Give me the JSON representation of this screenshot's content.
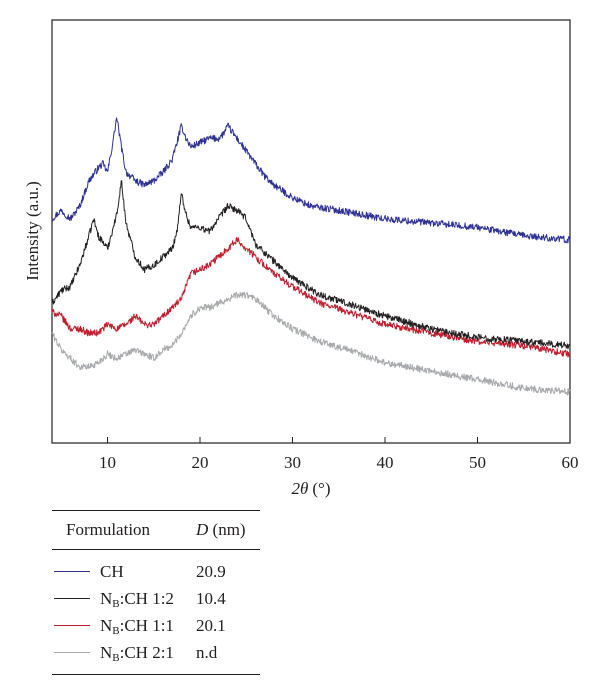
{
  "chart_data": {
    "type": "line",
    "title": "",
    "xlabel_symbol": "2θ",
    "xlabel_unit": "(°)",
    "ylabel": "Intensity (a.u.)",
    "xlim": [
      4,
      60
    ],
    "xticks": [
      10,
      20,
      30,
      40,
      50,
      60
    ],
    "yticks": [],
    "ylim": [
      0,
      100
    ],
    "grid": false,
    "legend_position": "below",
    "series": [
      {
        "name": "CH",
        "color": "#2e3192",
        "points": [
          [
            4,
            53
          ],
          [
            5,
            55
          ],
          [
            6,
            53
          ],
          [
            7,
            56
          ],
          [
            8,
            62
          ],
          [
            9,
            65
          ],
          [
            9.5,
            66
          ],
          [
            10,
            64
          ],
          [
            10.5,
            70
          ],
          [
            11,
            77
          ],
          [
            11.5,
            70
          ],
          [
            12,
            64
          ],
          [
            13,
            62
          ],
          [
            14,
            61
          ],
          [
            15,
            62
          ],
          [
            16,
            64
          ],
          [
            17,
            67
          ],
          [
            17.5,
            71
          ],
          [
            18,
            75
          ],
          [
            18.5,
            72
          ],
          [
            19,
            70
          ],
          [
            20,
            71
          ],
          [
            21,
            72
          ],
          [
            22,
            72
          ],
          [
            22.5,
            73
          ],
          [
            23,
            75
          ],
          [
            24,
            72
          ],
          [
            25,
            69
          ],
          [
            26,
            66
          ],
          [
            27,
            63
          ],
          [
            28,
            61
          ],
          [
            30,
            58
          ],
          [
            32,
            56
          ],
          [
            35,
            55
          ],
          [
            40,
            53
          ],
          [
            45,
            52
          ],
          [
            50,
            51
          ],
          [
            55,
            49
          ],
          [
            60,
            48
          ]
        ]
      },
      {
        "name": "N_B:CH 1:2",
        "color": "#231f20",
        "points": [
          [
            4,
            33
          ],
          [
            5,
            36
          ],
          [
            6,
            37
          ],
          [
            7,
            42
          ],
          [
            8,
            49
          ],
          [
            8.5,
            53
          ],
          [
            9,
            49
          ],
          [
            10,
            46
          ],
          [
            11,
            54
          ],
          [
            11.5,
            62
          ],
          [
            12,
            52
          ],
          [
            13,
            44
          ],
          [
            14,
            41
          ],
          [
            15,
            42
          ],
          [
            16,
            44
          ],
          [
            17,
            46
          ],
          [
            17.5,
            50
          ],
          [
            18,
            59
          ],
          [
            18.5,
            54
          ],
          [
            19,
            51
          ],
          [
            20,
            51
          ],
          [
            21,
            50
          ],
          [
            22,
            53
          ],
          [
            23,
            56
          ],
          [
            24,
            55
          ],
          [
            25,
            53
          ],
          [
            26,
            47
          ],
          [
            27,
            45
          ],
          [
            28,
            43
          ],
          [
            30,
            39
          ],
          [
            33,
            35
          ],
          [
            36,
            33
          ],
          [
            40,
            30
          ],
          [
            45,
            27
          ],
          [
            50,
            25
          ],
          [
            55,
            24
          ],
          [
            60,
            23
          ]
        ]
      },
      {
        "name": "N_B:CH 1:1",
        "color": "#be1e2d",
        "points": [
          [
            4,
            31
          ],
          [
            5,
            30
          ],
          [
            6,
            27
          ],
          [
            7,
            27
          ],
          [
            8,
            26
          ],
          [
            9,
            26
          ],
          [
            10,
            28
          ],
          [
            11,
            27
          ],
          [
            12,
            28
          ],
          [
            13,
            30
          ],
          [
            14,
            28
          ],
          [
            15,
            28
          ],
          [
            16,
            30
          ],
          [
            17,
            32
          ],
          [
            18,
            34
          ],
          [
            19,
            40
          ],
          [
            20,
            41
          ],
          [
            21,
            42
          ],
          [
            22,
            44
          ],
          [
            23,
            46
          ],
          [
            24,
            48
          ],
          [
            25,
            46
          ],
          [
            26,
            44
          ],
          [
            27,
            42
          ],
          [
            28,
            40
          ],
          [
            30,
            37
          ],
          [
            33,
            33
          ],
          [
            36,
            31
          ],
          [
            40,
            28
          ],
          [
            45,
            26
          ],
          [
            50,
            24
          ],
          [
            55,
            23
          ],
          [
            60,
            21
          ]
        ]
      },
      {
        "name": "N_B:CH 2:1",
        "color": "#a7a9ac",
        "points": [
          [
            4,
            26
          ],
          [
            5,
            22
          ],
          [
            6,
            20
          ],
          [
            7,
            18
          ],
          [
            8,
            18
          ],
          [
            9,
            19
          ],
          [
            10,
            21
          ],
          [
            11,
            20
          ],
          [
            12,
            21
          ],
          [
            13,
            22
          ],
          [
            14,
            21
          ],
          [
            15,
            20
          ],
          [
            16,
            22
          ],
          [
            17,
            23
          ],
          [
            18,
            26
          ],
          [
            19,
            30
          ],
          [
            20,
            32
          ],
          [
            21,
            32
          ],
          [
            22,
            33
          ],
          [
            23,
            34
          ],
          [
            24,
            35
          ],
          [
            25,
            35
          ],
          [
            26,
            34
          ],
          [
            27,
            32
          ],
          [
            28,
            30
          ],
          [
            30,
            27
          ],
          [
            33,
            24
          ],
          [
            36,
            22
          ],
          [
            40,
            19
          ],
          [
            45,
            17
          ],
          [
            50,
            15
          ],
          [
            55,
            13
          ],
          [
            60,
            12
          ]
        ]
      }
    ]
  },
  "legend_table": {
    "header_formulation": "Formulation",
    "header_d_symbol": "D",
    "header_d_unit": "(nm)",
    "rows": [
      {
        "prefix": "",
        "sub": "",
        "rest": "CH",
        "value": "20.9",
        "color": "#2e3192"
      },
      {
        "prefix": "N",
        "sub": "B",
        "rest": ":CH 1:2",
        "value": "10.4",
        "color": "#231f20"
      },
      {
        "prefix": "N",
        "sub": "B",
        "rest": ":CH 1:1",
        "value": "20.1",
        "color": "#be1e2d"
      },
      {
        "prefix": "N",
        "sub": "B",
        "rest": ":CH 2:1",
        "value": "n.d",
        "color": "#a7a9ac"
      }
    ]
  }
}
